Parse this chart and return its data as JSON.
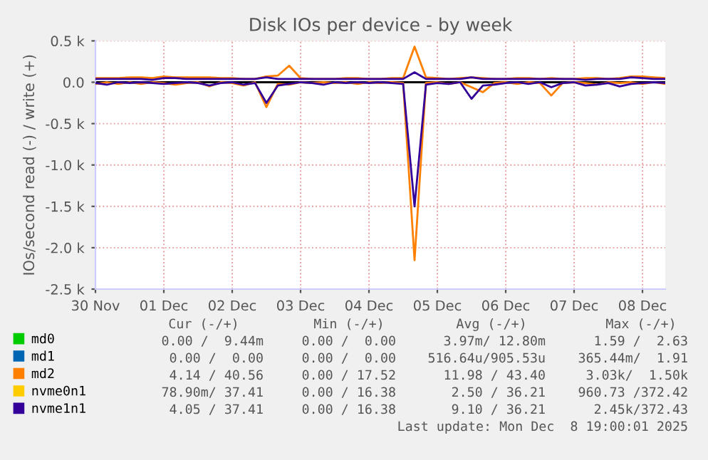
{
  "chart_data": {
    "type": "line",
    "title": "Disk IOs per device - by week",
    "ylabel": "IOs/second read (-) / write (+)",
    "x": [
      "2025-11-30T00:00",
      "2025-11-30T04:00",
      "2025-11-30T08:00",
      "2025-11-30T12:00",
      "2025-11-30T16:00",
      "2025-11-30T20:00",
      "2025-12-01T00:00",
      "2025-12-01T04:00",
      "2025-12-01T08:00",
      "2025-12-01T12:00",
      "2025-12-01T16:00",
      "2025-12-01T20:00",
      "2025-12-02T00:00",
      "2025-12-02T04:00",
      "2025-12-02T08:00",
      "2025-12-02T12:00",
      "2025-12-02T16:00",
      "2025-12-02T20:00",
      "2025-12-03T00:00",
      "2025-12-03T04:00",
      "2025-12-03T08:00",
      "2025-12-03T12:00",
      "2025-12-03T16:00",
      "2025-12-03T20:00",
      "2025-12-04T00:00",
      "2025-12-04T04:00",
      "2025-12-04T08:00",
      "2025-12-04T12:00",
      "2025-12-04T16:00",
      "2025-12-04T20:00",
      "2025-12-05T00:00",
      "2025-12-05T04:00",
      "2025-12-05T08:00",
      "2025-12-05T12:00",
      "2025-12-05T16:00",
      "2025-12-05T20:00",
      "2025-12-06T00:00",
      "2025-12-06T04:00",
      "2025-12-06T08:00",
      "2025-12-06T12:00",
      "2025-12-06T16:00",
      "2025-12-06T20:00",
      "2025-12-07T00:00",
      "2025-12-07T04:00",
      "2025-12-07T08:00",
      "2025-12-07T12:00",
      "2025-12-07T16:00",
      "2025-12-07T20:00",
      "2025-12-08T00:00",
      "2025-12-08T04:00",
      "2025-12-08T08:00"
    ],
    "series": [
      {
        "name": "md0",
        "color": "#00cc00",
        "values": [
          null,
          null,
          null,
          null,
          null,
          null,
          null,
          null,
          null,
          null,
          null,
          null,
          null,
          null,
          null,
          null,
          null,
          null,
          null,
          null,
          null,
          null,
          null,
          null,
          null,
          null,
          null,
          null,
          null,
          null,
          null,
          null,
          null,
          null,
          null,
          null,
          null,
          null,
          null,
          null,
          null,
          null,
          null,
          null,
          null,
          null,
          null,
          null,
          null,
          null,
          null
        ]
      },
      {
        "name": "md1",
        "color": "#0066b3",
        "values": [
          null,
          null,
          null,
          null,
          null,
          null,
          null,
          null,
          null,
          null,
          null,
          null,
          null,
          null,
          null,
          null,
          null,
          null,
          null,
          null,
          null,
          null,
          null,
          null,
          null,
          null,
          null,
          null,
          null,
          null,
          null,
          null,
          null,
          null,
          null,
          null,
          null,
          null,
          null,
          null,
          null,
          null,
          null,
          null,
          null,
          null,
          null,
          null,
          null,
          null,
          null
        ]
      },
      {
        "name": "md2",
        "color": "#ff8000",
        "values": [
          50,
          50,
          50,
          60,
          60,
          50,
          70,
          60,
          60,
          60,
          60,
          50,
          50,
          40,
          40,
          70,
          80,
          200,
          50,
          40,
          40,
          40,
          50,
          50,
          40,
          40,
          50,
          50,
          430,
          60,
          50,
          40,
          50,
          60,
          50,
          40,
          40,
          50,
          50,
          40,
          50,
          40,
          40,
          50,
          50,
          40,
          50,
          70,
          70,
          60,
          50
        ]
      },
      {
        "color": "#ff8000",
        "values": [
          -20,
          0,
          -20,
          0,
          -20,
          0,
          -10,
          -30,
          -10,
          0,
          -50,
          0,
          -10,
          -40,
          0,
          -300,
          -20,
          -30,
          0,
          -10,
          0,
          -10,
          0,
          -20,
          0,
          -10,
          0,
          -10,
          -2150,
          -10,
          0,
          -20,
          0,
          -60,
          -120,
          -10,
          0,
          -20,
          0,
          -10,
          -160,
          -10,
          0,
          -10,
          -30,
          0,
          -10,
          0,
          -20,
          0,
          -20
        ]
      },
      {
        "name": "nvme0n1",
        "color": "#ffcc00",
        "values": [
          null,
          null,
          null,
          null,
          null,
          null,
          null,
          null,
          null,
          null,
          null,
          null,
          null,
          null,
          null,
          null,
          null,
          null,
          null,
          null,
          null,
          null,
          null,
          null,
          null,
          null,
          null,
          null,
          null,
          null,
          null,
          null,
          null,
          null,
          null,
          null,
          null,
          null,
          null,
          null,
          null,
          null,
          null,
          null,
          null,
          null,
          null,
          null,
          null,
          null,
          null
        ]
      },
      {
        "name": "nvme1n1",
        "color": "#330099",
        "values": [
          40,
          40,
          40,
          40,
          40,
          30,
          50,
          50,
          40,
          40,
          40,
          40,
          40,
          40,
          40,
          60,
          40,
          40,
          40,
          40,
          40,
          40,
          40,
          40,
          40,
          40,
          40,
          40,
          120,
          40,
          40,
          40,
          40,
          60,
          40,
          40,
          40,
          40,
          40,
          40,
          40,
          40,
          40,
          30,
          40,
          40,
          40,
          60,
          50,
          40,
          40
        ]
      },
      {
        "color": "#330099",
        "values": [
          -10,
          -30,
          0,
          -10,
          0,
          -10,
          -20,
          -10,
          0,
          -10,
          -40,
          -10,
          0,
          -30,
          -10,
          -250,
          -40,
          -20,
          0,
          -10,
          -30,
          0,
          -10,
          0,
          -10,
          0,
          -10,
          -20,
          -1500,
          -30,
          -10,
          -20,
          0,
          -200,
          -40,
          -30,
          -10,
          0,
          -20,
          0,
          -60,
          -10,
          0,
          -40,
          -30,
          -10,
          -50,
          -20,
          -10,
          0,
          -10
        ]
      }
    ],
    "xlim": [
      "2025-11-30T00:00",
      "2025-12-08T08:00"
    ],
    "xticks": [
      {
        "value": "2025-11-30",
        "label": "30 Nov"
      },
      {
        "value": "2025-12-01",
        "label": "01 Dec"
      },
      {
        "value": "2025-12-02",
        "label": "02 Dec"
      },
      {
        "value": "2025-12-03",
        "label": "03 Dec"
      },
      {
        "value": "2025-12-04",
        "label": "04 Dec"
      },
      {
        "value": "2025-12-05",
        "label": "05 Dec"
      },
      {
        "value": "2025-12-06",
        "label": "06 Dec"
      },
      {
        "value": "2025-12-07",
        "label": "07 Dec"
      },
      {
        "value": "2025-12-08",
        "label": "08 Dec"
      }
    ],
    "ylim": [
      -2500,
      500
    ],
    "yticks": [
      {
        "value": 500,
        "label": "0.5 k"
      },
      {
        "value": 0,
        "label": "0.0"
      },
      {
        "value": -500,
        "label": "-0.5 k"
      },
      {
        "value": -1000,
        "label": "-1.0 k"
      },
      {
        "value": -1500,
        "label": "-1.5 k"
      },
      {
        "value": -2000,
        "label": "-2.0 k"
      },
      {
        "value": -2500,
        "label": "-2.5 k"
      }
    ],
    "ref_lines": [
      {
        "axis": "y",
        "value": 0,
        "color": "#000000"
      }
    ],
    "grid": true,
    "legend": "bottom",
    "marker": "none",
    "line_style": "solid",
    "annotations": [
      "Cur (-/+)",
      "Min (-/+)",
      "Avg (-/+)",
      "Max (-/+)",
      "0.00 /  9.44m",
      "0.00 /  0.00",
      "3.97m/ 12.80m",
      "1.59 /  2.63",
      "0.00 /  0.00",
      "0.00 /  0.00",
      "516.64u/905.53u",
      "365.44m/  1.91",
      "4.14 / 40.56",
      "0.00 / 17.52",
      "11.98 / 43.40",
      "3.03k/  1.50k",
      "78.90m/ 37.41",
      "0.00 / 16.38",
      "2.50 / 36.21",
      "960.73 /372.42",
      "4.05 / 37.41",
      "0.00 / 16.38",
      "9.10 / 36.21",
      "2.45k/372.43",
      "Last update: Mon Dec  8 19:00:01 2025"
    ]
  }
}
